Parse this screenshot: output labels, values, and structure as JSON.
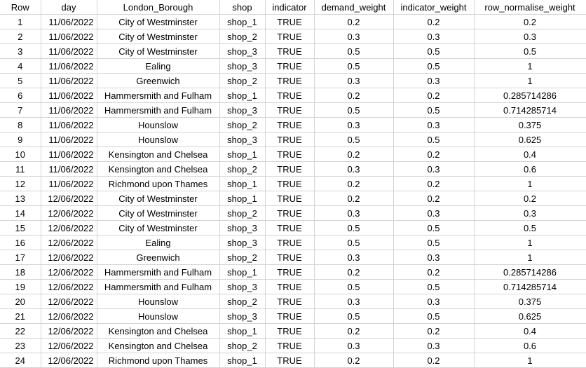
{
  "sheet": {
    "headers": [
      "Row",
      "day",
      "London_Borough",
      "shop",
      "indicator",
      "demand_weight",
      "indicator_weight",
      "row_normalise_weight"
    ],
    "rows": [
      [
        "1",
        "11/06/2022",
        "City of Westminster",
        "shop_1",
        "TRUE",
        "0.2",
        "0.2",
        "0.2"
      ],
      [
        "2",
        "11/06/2022",
        "City of Westminster",
        "shop_2",
        "TRUE",
        "0.3",
        "0.3",
        "0.3"
      ],
      [
        "3",
        "11/06/2022",
        "City of Westminster",
        "shop_3",
        "TRUE",
        "0.5",
        "0.5",
        "0.5"
      ],
      [
        "4",
        "11/06/2022",
        "Ealing",
        "shop_3",
        "TRUE",
        "0.5",
        "0.5",
        "1"
      ],
      [
        "5",
        "11/06/2022",
        "Greenwich",
        "shop_2",
        "TRUE",
        "0.3",
        "0.3",
        "1"
      ],
      [
        "6",
        "11/06/2022",
        "Hammersmith and Fulham",
        "shop_1",
        "TRUE",
        "0.2",
        "0.2",
        "0.285714286"
      ],
      [
        "7",
        "11/06/2022",
        "Hammersmith and Fulham",
        "shop_3",
        "TRUE",
        "0.5",
        "0.5",
        "0.714285714"
      ],
      [
        "8",
        "11/06/2022",
        "Hounslow",
        "shop_2",
        "TRUE",
        "0.3",
        "0.3",
        "0.375"
      ],
      [
        "9",
        "11/06/2022",
        "Hounslow",
        "shop_3",
        "TRUE",
        "0.5",
        "0.5",
        "0.625"
      ],
      [
        "10",
        "11/06/2022",
        "Kensington and Chelsea",
        "shop_1",
        "TRUE",
        "0.2",
        "0.2",
        "0.4"
      ],
      [
        "11",
        "11/06/2022",
        "Kensington and Chelsea",
        "shop_2",
        "TRUE",
        "0.3",
        "0.3",
        "0.6"
      ],
      [
        "12",
        "11/06/2022",
        "Richmond upon Thames",
        "shop_1",
        "TRUE",
        "0.2",
        "0.2",
        "1"
      ],
      [
        "13",
        "12/06/2022",
        "City of Westminster",
        "shop_1",
        "TRUE",
        "0.2",
        "0.2",
        "0.2"
      ],
      [
        "14",
        "12/06/2022",
        "City of Westminster",
        "shop_2",
        "TRUE",
        "0.3",
        "0.3",
        "0.3"
      ],
      [
        "15",
        "12/06/2022",
        "City of Westminster",
        "shop_3",
        "TRUE",
        "0.5",
        "0.5",
        "0.5"
      ],
      [
        "16",
        "12/06/2022",
        "Ealing",
        "shop_3",
        "TRUE",
        "0.5",
        "0.5",
        "1"
      ],
      [
        "17",
        "12/06/2022",
        "Greenwich",
        "shop_2",
        "TRUE",
        "0.3",
        "0.3",
        "1"
      ],
      [
        "18",
        "12/06/2022",
        "Hammersmith and Fulham",
        "shop_1",
        "TRUE",
        "0.2",
        "0.2",
        "0.285714286"
      ],
      [
        "19",
        "12/06/2022",
        "Hammersmith and Fulham",
        "shop_3",
        "TRUE",
        "0.5",
        "0.5",
        "0.714285714"
      ],
      [
        "20",
        "12/06/2022",
        "Hounslow",
        "shop_2",
        "TRUE",
        "0.3",
        "0.3",
        "0.375"
      ],
      [
        "21",
        "12/06/2022",
        "Hounslow",
        "shop_3",
        "TRUE",
        "0.5",
        "0.5",
        "0.625"
      ],
      [
        "22",
        "12/06/2022",
        "Kensington and Chelsea",
        "shop_1",
        "TRUE",
        "0.2",
        "0.2",
        "0.4"
      ],
      [
        "23",
        "12/06/2022",
        "Kensington and Chelsea",
        "shop_2",
        "TRUE",
        "0.3",
        "0.3",
        "0.6"
      ],
      [
        "24",
        "12/06/2022",
        "Richmond upon Thames",
        "shop_1",
        "TRUE",
        "0.2",
        "0.2",
        "1"
      ]
    ]
  }
}
